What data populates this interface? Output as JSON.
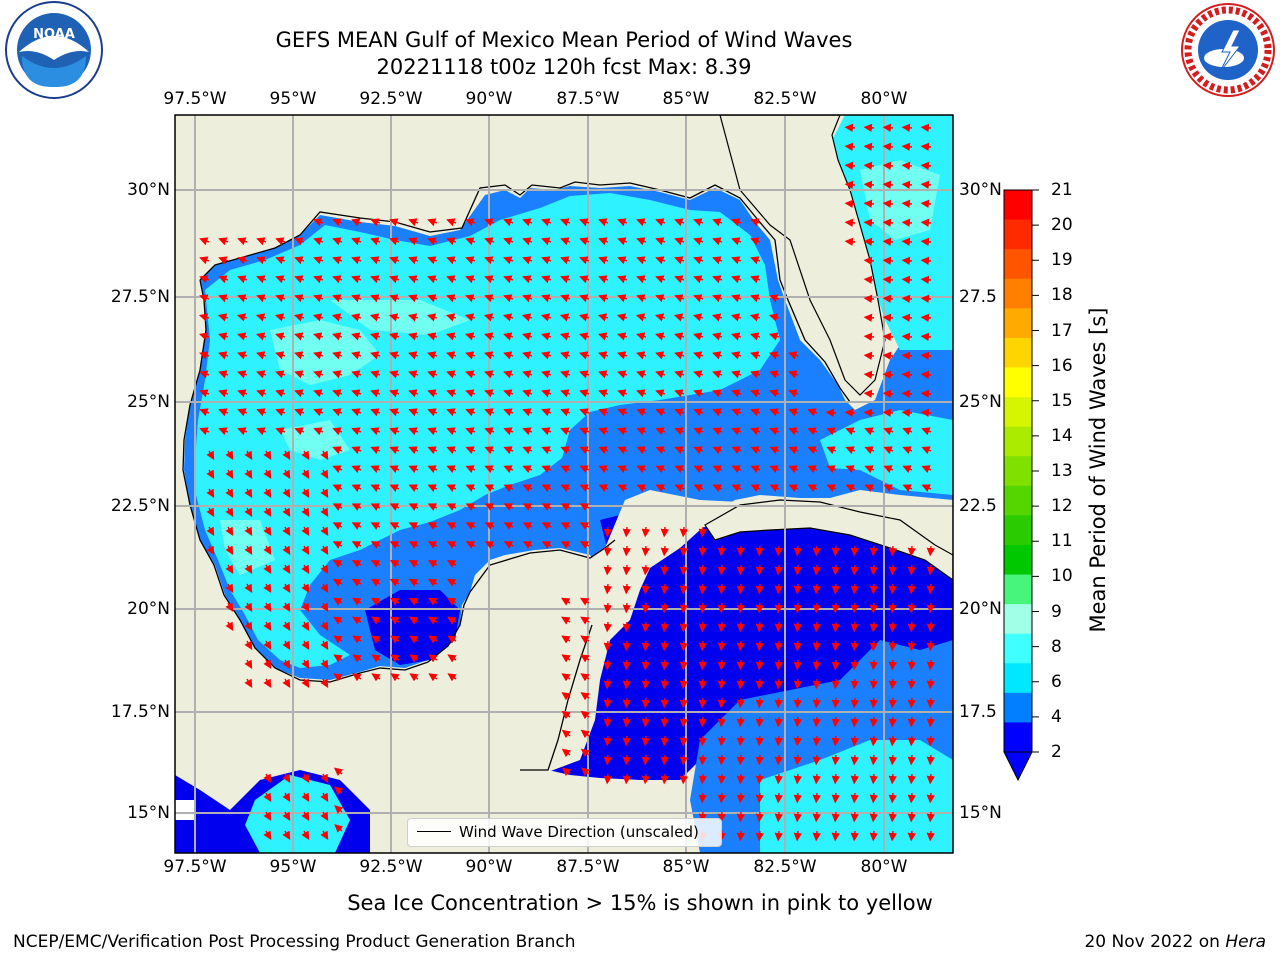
{
  "title_line1": "GEFS MEAN Gulf of Mexico Mean Period of Wind Waves",
  "title_line2": "20221118 t00z 120h fcst   Max: 8.39",
  "lon_labels": [
    "97.5°W",
    "95°W",
    "92.5°W",
    "90°W",
    "87.5°W",
    "85°W",
    "82.5°W",
    "80°W"
  ],
  "lat_labels": [
    "30°N",
    "27.5°N",
    "25°N",
    "22.5°N",
    "20°N",
    "17.5°N",
    "15°N"
  ],
  "lat_labels_right": [
    "30°N",
    "27.5",
    "25°N",
    "22.5",
    "20°N",
    "17.5",
    "15°N"
  ],
  "colorbar": {
    "label": "Mean Period of Wind Waves [s]",
    "ticks": [
      "21",
      "20",
      "19",
      "18",
      "17",
      "16",
      "15",
      "14",
      "13",
      "12",
      "11",
      "10",
      "9",
      "8",
      "6",
      "4",
      "2"
    ],
    "colors": [
      "#ff0000",
      "#ff2a00",
      "#ff5500",
      "#ff8000",
      "#ffaa00",
      "#ffd500",
      "#ffff00",
      "#d5f500",
      "#aaeb00",
      "#80e000",
      "#55d600",
      "#2acc00",
      "#00c800",
      "#46f57a",
      "#a0ffe6",
      "#40ffff",
      "#00e8ff",
      "#0080ff",
      "#0000ff"
    ]
  },
  "legend": {
    "label": "Wind Wave Direction (unscaled)"
  },
  "subtitle": "Sea Ice Concentration > 15% is shown in pink to yellow",
  "footer_left": "NCEP/EMC/Verification Post Processing Product Generation Branch",
  "footer_right_date": "20 Nov 2022 on ",
  "footer_right_host": "Hera",
  "logos": {
    "left": "NOAA",
    "right": "NATIONAL WEATHER SERVICE"
  },
  "colors": {
    "land": "#eeeedc",
    "deep": "#0000ee",
    "mid": "#1a80ff",
    "light": "#2ef2ff",
    "pale": "#70fff0",
    "arrow": "#ff0000"
  }
}
